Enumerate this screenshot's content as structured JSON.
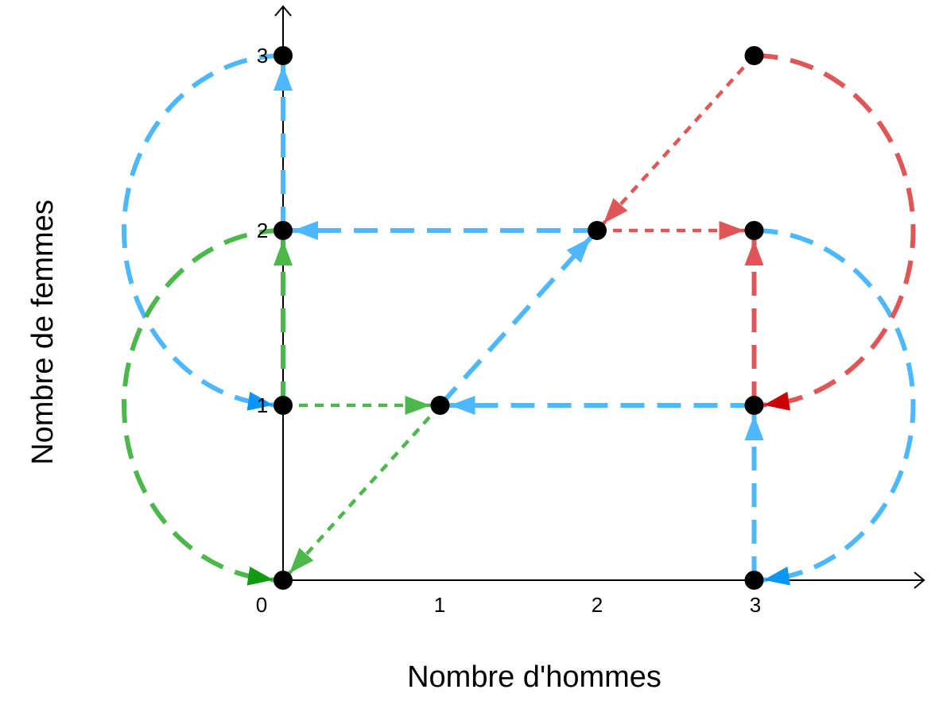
{
  "chart_data": {
    "type": "diagram",
    "xlabel": "Nombre d'hommes",
    "ylabel": "Nombre de femmes",
    "x_ticks": [
      "0",
      "1",
      "2",
      "3"
    ],
    "y_ticks": [
      "1",
      "2",
      "3"
    ],
    "colors": {
      "blue": "#4db8ff",
      "blue_dark": "#0a96f5",
      "green": "#4cb84c",
      "green_dark": "#129a12",
      "red": "#e05555",
      "red_dark": "#cc0000",
      "node": "#000000",
      "axis": "#000000"
    },
    "nodes": [
      [
        0,
        0
      ],
      [
        0,
        1
      ],
      [
        0,
        2
      ],
      [
        0,
        3
      ],
      [
        1,
        1
      ],
      [
        2,
        2
      ],
      [
        3,
        0
      ],
      [
        3,
        1
      ],
      [
        3,
        2
      ],
      [
        3,
        3
      ]
    ],
    "edges": [
      {
        "from": [
          0,
          3
        ],
        "to": [
          0,
          1
        ],
        "color": "blue",
        "style": "long",
        "arc": "left",
        "head": "blue_dark"
      },
      {
        "from": [
          0,
          2
        ],
        "to": [
          0,
          3
        ],
        "color": "blue",
        "style": "long"
      },
      {
        "from": [
          2,
          2
        ],
        "to": [
          0,
          2
        ],
        "color": "blue",
        "style": "long"
      },
      {
        "from": [
          1,
          1
        ],
        "to": [
          2,
          2
        ],
        "color": "blue",
        "style": "long"
      },
      {
        "from": [
          3,
          1
        ],
        "to": [
          1,
          1
        ],
        "color": "blue",
        "style": "long"
      },
      {
        "from": [
          3,
          0
        ],
        "to": [
          3,
          1
        ],
        "color": "blue",
        "style": "long"
      },
      {
        "from": [
          3,
          2
        ],
        "to": [
          3,
          0
        ],
        "color": "blue",
        "style": "long",
        "arc": "right",
        "head": "blue_dark"
      },
      {
        "from": [
          0,
          2
        ],
        "to": [
          0,
          0
        ],
        "color": "green",
        "style": "long",
        "arc": "left",
        "head": "green_dark"
      },
      {
        "from": [
          0,
          1
        ],
        "to": [
          0,
          2
        ],
        "color": "green",
        "style": "long"
      },
      {
        "from": [
          0,
          1
        ],
        "to": [
          1,
          1
        ],
        "color": "green",
        "style": "short"
      },
      {
        "from": [
          1,
          1
        ],
        "to": [
          0,
          0
        ],
        "color": "green",
        "style": "short"
      },
      {
        "from": [
          3,
          3
        ],
        "to": [
          2,
          2
        ],
        "color": "red",
        "style": "short"
      },
      {
        "from": [
          2,
          2
        ],
        "to": [
          3,
          2
        ],
        "color": "red",
        "style": "short"
      },
      {
        "from": [
          3,
          1
        ],
        "to": [
          3,
          2
        ],
        "color": "red",
        "style": "long"
      },
      {
        "from": [
          3,
          3
        ],
        "to": [
          3,
          1
        ],
        "color": "red",
        "style": "long",
        "arc": "right",
        "head": "red_dark"
      }
    ]
  }
}
